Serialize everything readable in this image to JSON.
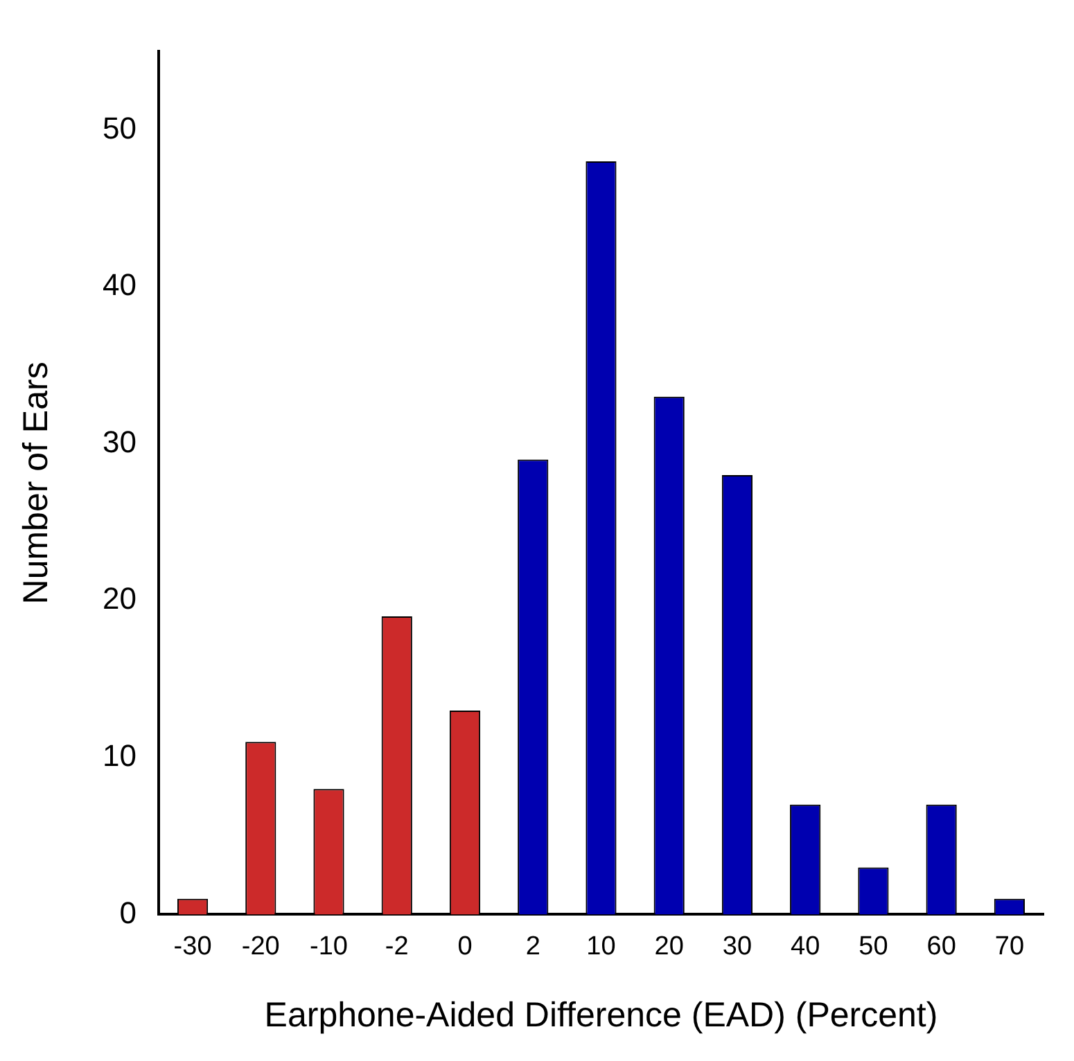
{
  "chart_data": {
    "type": "bar",
    "xlabel": "Earphone-Aided Difference (EAD) (Percent)",
    "ylabel": "Number of Ears",
    "categories": [
      "-30",
      "-20",
      "-10",
      "-2",
      "0",
      "2",
      "10",
      "20",
      "30",
      "40",
      "50",
      "60",
      "70"
    ],
    "values": [
      1,
      11,
      8,
      19,
      13,
      29,
      48,
      33,
      28,
      7,
      3,
      7,
      1
    ],
    "colors": [
      "#cc2a2a",
      "#cc2a2a",
      "#cc2a2a",
      "#cc2a2a",
      "#cc2a2a",
      "#0000b0",
      "#0000b0",
      "#0000b0",
      "#0000b0",
      "#0000b0",
      "#0000b0",
      "#0000b0",
      "#0000b0"
    ],
    "ylim": [
      0,
      55
    ],
    "yticks": [
      0,
      10,
      20,
      30,
      40,
      50
    ],
    "grid": false,
    "legend": false
  }
}
